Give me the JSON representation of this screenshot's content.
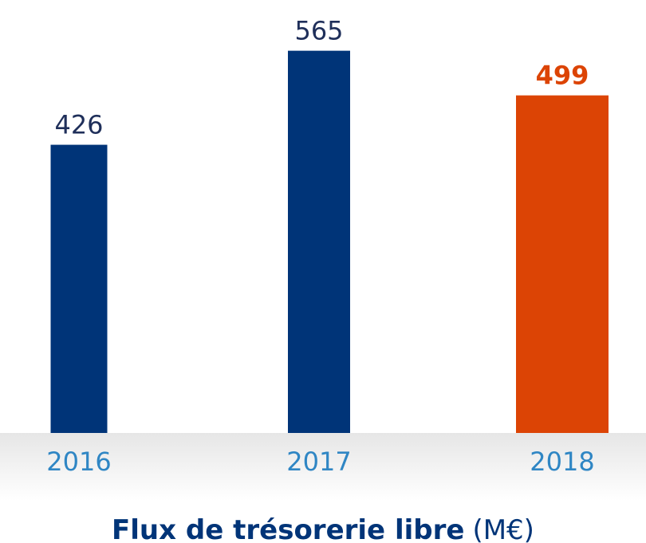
{
  "chart_data": {
    "type": "bar",
    "title": "Flux de trésorerie libre",
    "unit": "(M€)",
    "categories": [
      "2016",
      "2017",
      "2018"
    ],
    "values": [
      426,
      565,
      499
    ],
    "colors": [
      "#003478",
      "#003478",
      "#dc4405"
    ],
    "ylim": [
      0,
      640
    ]
  }
}
